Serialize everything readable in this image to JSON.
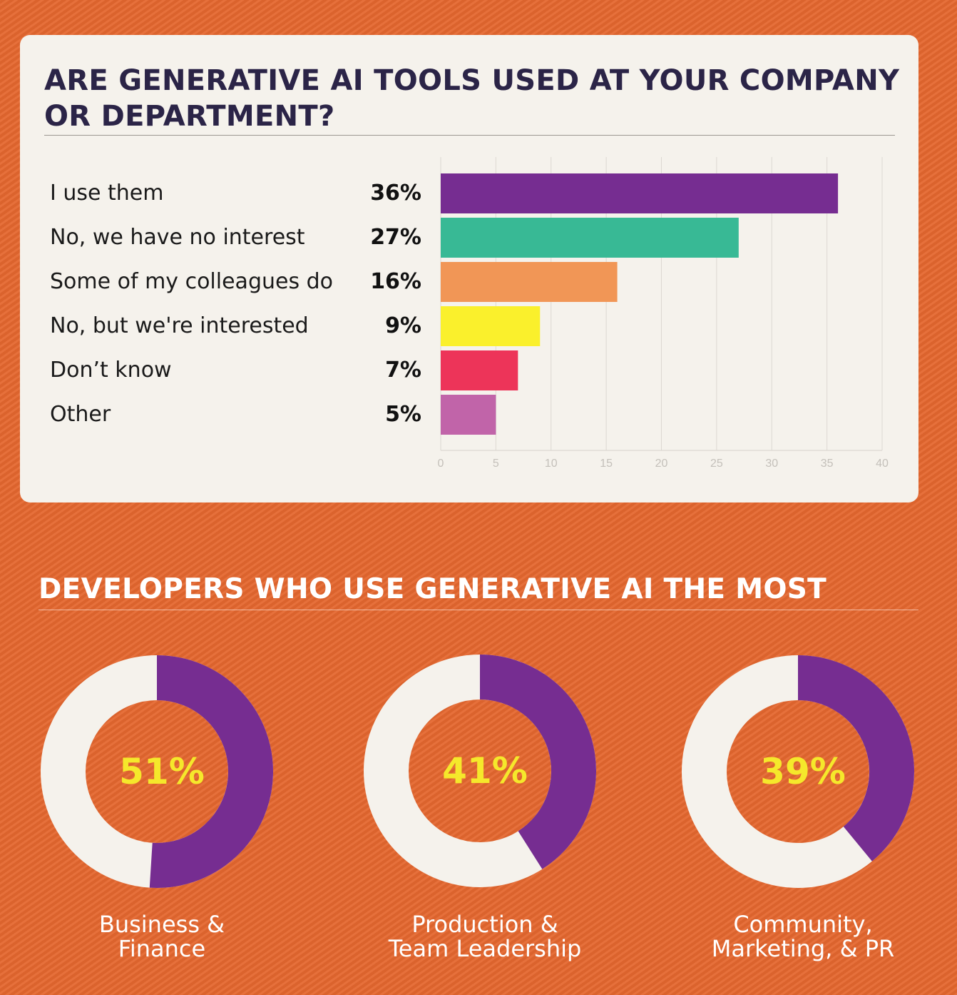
{
  "chart_data": [
    {
      "type": "bar",
      "orientation": "horizontal",
      "title": "ARE GENERATIVE AI TOOLS USED AT YOUR COMPANY OR DEPARTMENT?",
      "categories": [
        "I use them",
        "No, we have no interest",
        "Some of my colleagues do",
        "No, but we're interested",
        "Don’t know",
        "Other"
      ],
      "values": [
        36,
        27,
        16,
        9,
        7,
        5
      ],
      "value_labels": [
        "36%",
        "27%",
        "16%",
        "9%",
        "7%",
        "5%"
      ],
      "colors": [
        "#762d91",
        "#38b995",
        "#f19656",
        "#faf02c",
        "#ed3459",
        "#c164a9"
      ],
      "xlim": [
        0,
        40
      ],
      "xticks": [
        0,
        5,
        10,
        15,
        20,
        25,
        30,
        35,
        40
      ],
      "grid": true
    },
    {
      "type": "pie",
      "variant": "donut",
      "title": "DEVELOPERS WHO USE GENERATIVE AI THE MOST",
      "items": [
        {
          "label": "Business & Finance",
          "label_lines": [
            "Business &",
            "Finance"
          ],
          "value": 51,
          "value_label": "51%"
        },
        {
          "label": "Production & Team Leadership",
          "label_lines": [
            "Production &",
            "Team Leadership"
          ],
          "value": 41,
          "value_label": "41%"
        },
        {
          "label": "Community, Marketing, & PR",
          "label_lines": [
            "Community,",
            "Marketing, & PR"
          ],
          "value": 39,
          "value_label": "39%"
        }
      ],
      "colors": {
        "filled": "#762d91",
        "remainder": "#f5f2ec",
        "value_text": "#f5e82b"
      }
    }
  ]
}
